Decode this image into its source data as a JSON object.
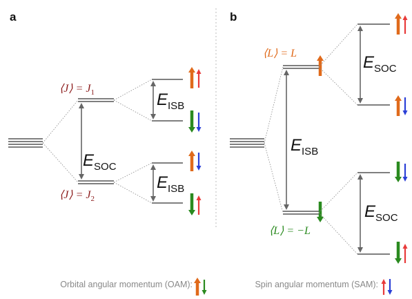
{
  "panel_a": {
    "letter": "a",
    "upper_level": {
      "text": "⟨J⟩ = J",
      "sub": "1"
    },
    "lower_level": {
      "text": "⟨J⟩ = J",
      "sub": "2"
    },
    "gap_soc": {
      "text": "E",
      "sub": "SOC"
    },
    "gap_isb_upper": {
      "text": "E",
      "sub": "ISB"
    },
    "gap_isb_lower": {
      "text": "E",
      "sub": "ISB"
    }
  },
  "panel_b": {
    "letter": "b",
    "upper_level": {
      "text": "⟨L⟩ = L"
    },
    "lower_level": {
      "text": "⟨L⟩ = −L"
    },
    "gap_isb": {
      "text": "E",
      "sub": "ISB"
    },
    "gap_soc_upper": {
      "text": "E",
      "sub": "SOC"
    },
    "gap_soc_lower": {
      "text": "E",
      "sub": "SOC"
    }
  },
  "legend": {
    "oam": "Orbital angular momentum (OAM):",
    "sam": "Spin angular momentum (SAM):"
  }
}
